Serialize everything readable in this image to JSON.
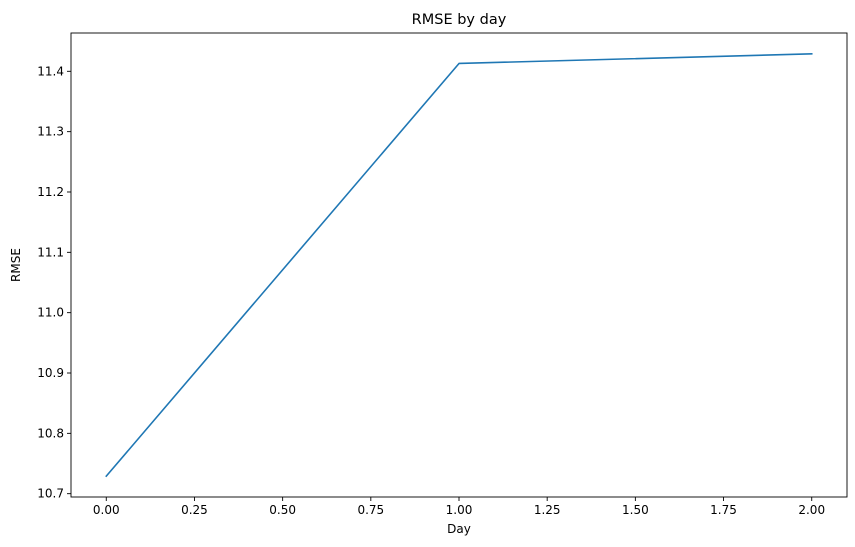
{
  "chart_data": {
    "type": "line",
    "title": "RMSE by day",
    "xlabel": "Day",
    "ylabel": "RMSE",
    "xlim": [
      -0.1,
      2.1
    ],
    "ylim": [
      10.6945,
      11.4635
    ],
    "xticks": [
      0.0,
      0.25,
      0.5,
      0.75,
      1.0,
      1.25,
      1.5,
      1.75,
      2.0
    ],
    "xtick_labels": [
      "0.00",
      "0.25",
      "0.50",
      "0.75",
      "1.00",
      "1.25",
      "1.50",
      "1.75",
      "2.00"
    ],
    "yticks": [
      10.7,
      10.8,
      10.9,
      11.0,
      11.1,
      11.2,
      11.3,
      11.4
    ],
    "ytick_labels": [
      "10.7",
      "10.8",
      "10.9",
      "11.0",
      "11.1",
      "11.2",
      "11.3",
      "11.4"
    ],
    "grid": false,
    "series": [
      {
        "x": [
          0,
          1,
          2
        ],
        "y": [
          10.729,
          11.413,
          11.429
        ],
        "color": "#1f77b4"
      }
    ]
  }
}
